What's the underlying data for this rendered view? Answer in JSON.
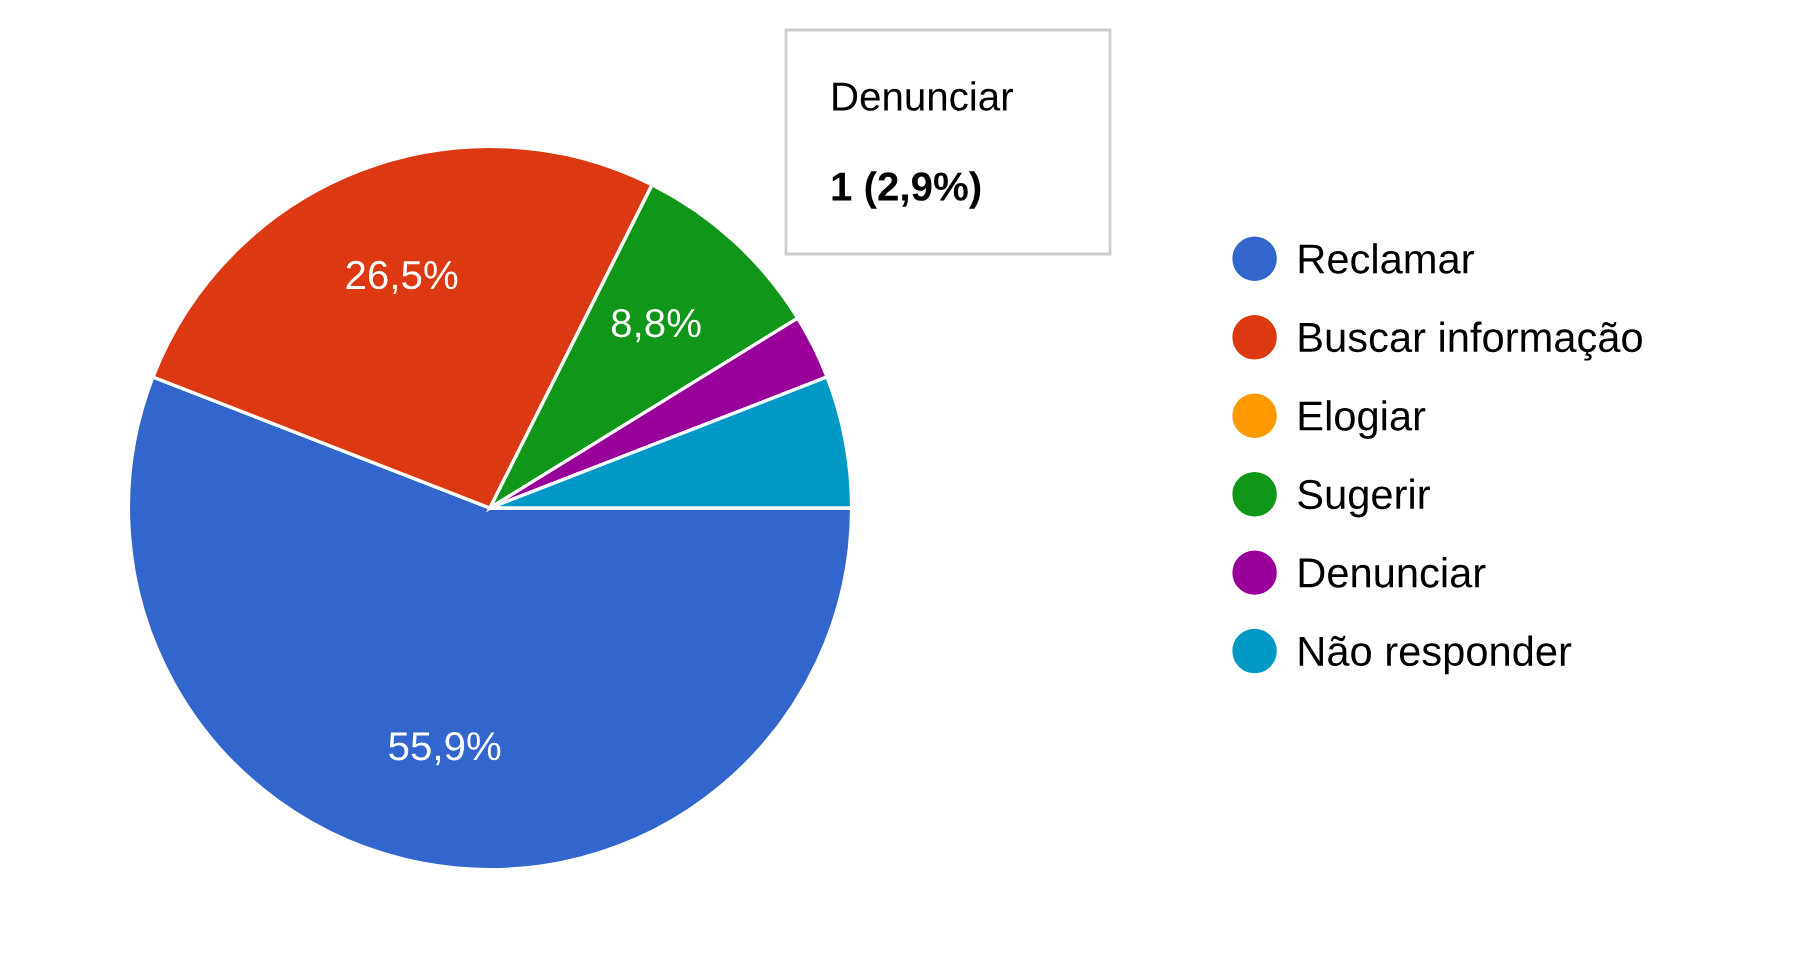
{
  "chart_data": {
    "type": "pie",
    "categories": [
      "Reclamar",
      "Buscar informação",
      "Elogiar",
      "Sugerir",
      "Denunciar",
      "Não responder"
    ],
    "values": [
      55.9,
      26.5,
      0,
      8.8,
      2.9,
      5.9
    ],
    "colors": [
      "#3366cc",
      "#dc3912",
      "#ff9900",
      "#109618",
      "#990099",
      "#0099c6"
    ],
    "value_labels": [
      "55,9%",
      "26,5%",
      null,
      "8,8%",
      null,
      null
    ],
    "annotations": [
      "Denunciar",
      "1 (2,9%)"
    ],
    "legend": "right"
  }
}
